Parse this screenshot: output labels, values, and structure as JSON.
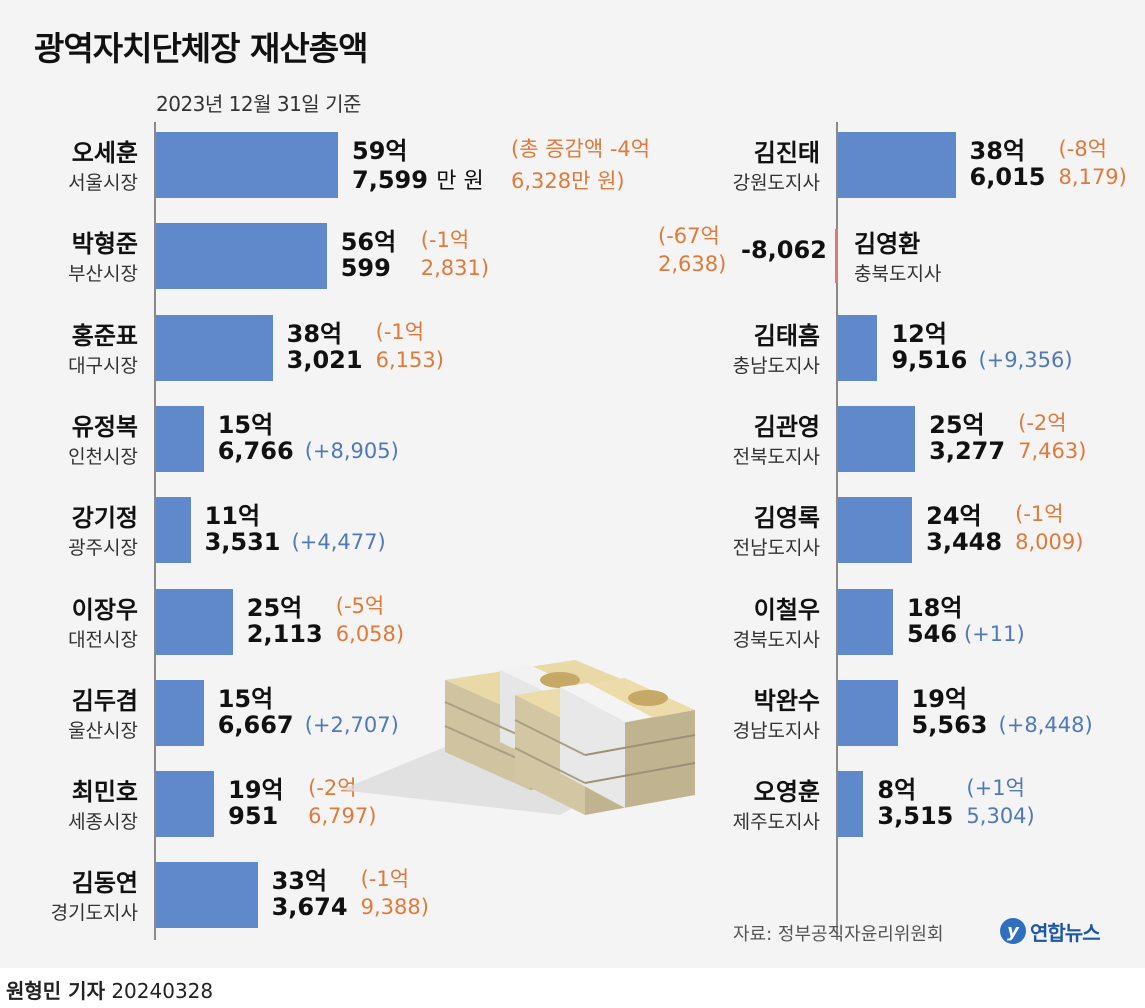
{
  "title": "광역자치단체장 재산총액",
  "subtitle": "2023년 12월 31일 기준",
  "source": "자료: 정부공직자윤리위원회",
  "logo_text": "연합뉴스",
  "byline": {
    "author": "원형민 기자",
    "date": "20240328"
  },
  "colors": {
    "bar": "#6089cb",
    "negative_bar": "#d97b7b",
    "decrease": "#e07a3a",
    "increase": "#4f79b8"
  },
  "illustration": "stack-of-banknotes",
  "chart_data": {
    "type": "bar",
    "unit": "만 원",
    "items": [
      {
        "name": "오세훈",
        "role": "서울시장",
        "value": 597599,
        "line1": "59억",
        "line2": "7,599",
        "unit": "만 원",
        "change1": "(총 증감액 -4억",
        "change2": "6,328만 원)",
        "direction": "down"
      },
      {
        "name": "박형준",
        "role": "부산시장",
        "value": 560599,
        "line1": "56억",
        "line2": "599",
        "change1": "(-1억",
        "change2": "2,831)",
        "direction": "down"
      },
      {
        "name": "홍준표",
        "role": "대구시장",
        "value": 383021,
        "line1": "38억",
        "line2": "3,021",
        "change1": "(-1억",
        "change2": "6,153)",
        "direction": "down"
      },
      {
        "name": "유정복",
        "role": "인천시장",
        "value": 156766,
        "line1": "15억",
        "line2": "6,766",
        "change1": "",
        "change2": "(+8,905)",
        "direction": "up"
      },
      {
        "name": "강기정",
        "role": "광주시장",
        "value": 113531,
        "line1": "11억",
        "line2": "3,531",
        "change1": "",
        "change2": "(+4,477)",
        "direction": "up"
      },
      {
        "name": "이장우",
        "role": "대전시장",
        "value": 252113,
        "line1": "25억",
        "line2": "2,113",
        "change1": "(-5억",
        "change2": "6,058)",
        "direction": "down"
      },
      {
        "name": "김두겸",
        "role": "울산시장",
        "value": 156667,
        "line1": "15억",
        "line2": "6,667",
        "change1": "",
        "change2": "(+2,707)",
        "direction": "up"
      },
      {
        "name": "최민호",
        "role": "세종시장",
        "value": 190951,
        "line1": "19억",
        "line2": "951",
        "change1": "(-2억",
        "change2": "6,797)",
        "direction": "down"
      },
      {
        "name": "김동연",
        "role": "경기도지사",
        "value": 333674,
        "line1": "33억",
        "line2": "3,674",
        "change1": "(-1억",
        "change2": "9,388)",
        "direction": "down"
      },
      {
        "name": "김진태",
        "role": "강원도지사",
        "value": 386015,
        "line1": "38억",
        "line2": "6,015",
        "change1": "(-8억",
        "change2": "8,179)",
        "direction": "down"
      },
      {
        "name": "김영환",
        "role": "충북도지사",
        "value": -8062,
        "line1": "",
        "line2": "-8,062",
        "change1": "(-67억",
        "change2": "2,638)",
        "direction": "down"
      },
      {
        "name": "김태흠",
        "role": "충남도지사",
        "value": 129516,
        "line1": "12억",
        "line2": "9,516",
        "change1": "",
        "change2": "(+9,356)",
        "direction": "up"
      },
      {
        "name": "김관영",
        "role": "전북도지사",
        "value": 253277,
        "line1": "25억",
        "line2": "3,277",
        "change1": "(-2억",
        "change2": "7,463)",
        "direction": "down"
      },
      {
        "name": "김영록",
        "role": "전남도지사",
        "value": 243448,
        "line1": "24억",
        "line2": "3,448",
        "change1": "(-1억",
        "change2": "8,009)",
        "direction": "down"
      },
      {
        "name": "이철우",
        "role": "경북도지사",
        "value": 180546,
        "line1": "18억",
        "line2": "546",
        "change1": "",
        "change2": "(+11)",
        "direction": "up"
      },
      {
        "name": "박완수",
        "role": "경남도지사",
        "value": 195563,
        "line1": "19억",
        "line2": "5,563",
        "change1": "",
        "change2": "(+8,448)",
        "direction": "up"
      },
      {
        "name": "오영훈",
        "role": "제주도지사",
        "value": 83515,
        "line1": "8억",
        "line2": "3,515",
        "change1": "(+1억",
        "change2": "5,304)",
        "direction": "up"
      }
    ]
  }
}
